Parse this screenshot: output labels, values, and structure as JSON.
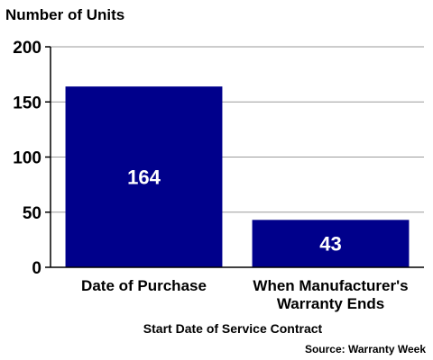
{
  "chart_data": {
    "type": "bar",
    "ylabel": "Number of Units",
    "xlabel": "Start Date of Service Contract",
    "source": "Source: Warranty Week",
    "categories": [
      [
        "Date of Purchase"
      ],
      [
        "When Manufacturer's",
        "Warranty Ends"
      ]
    ],
    "values": [
      164,
      43
    ],
    "data_labels": [
      "164",
      "43"
    ],
    "ylim": [
      0,
      200
    ],
    "yticks": [
      0,
      50,
      100,
      150,
      200
    ],
    "ytick_labels": [
      "0",
      "50",
      "100",
      "150",
      "200"
    ],
    "grid": true,
    "bar_color": "#00008B"
  }
}
